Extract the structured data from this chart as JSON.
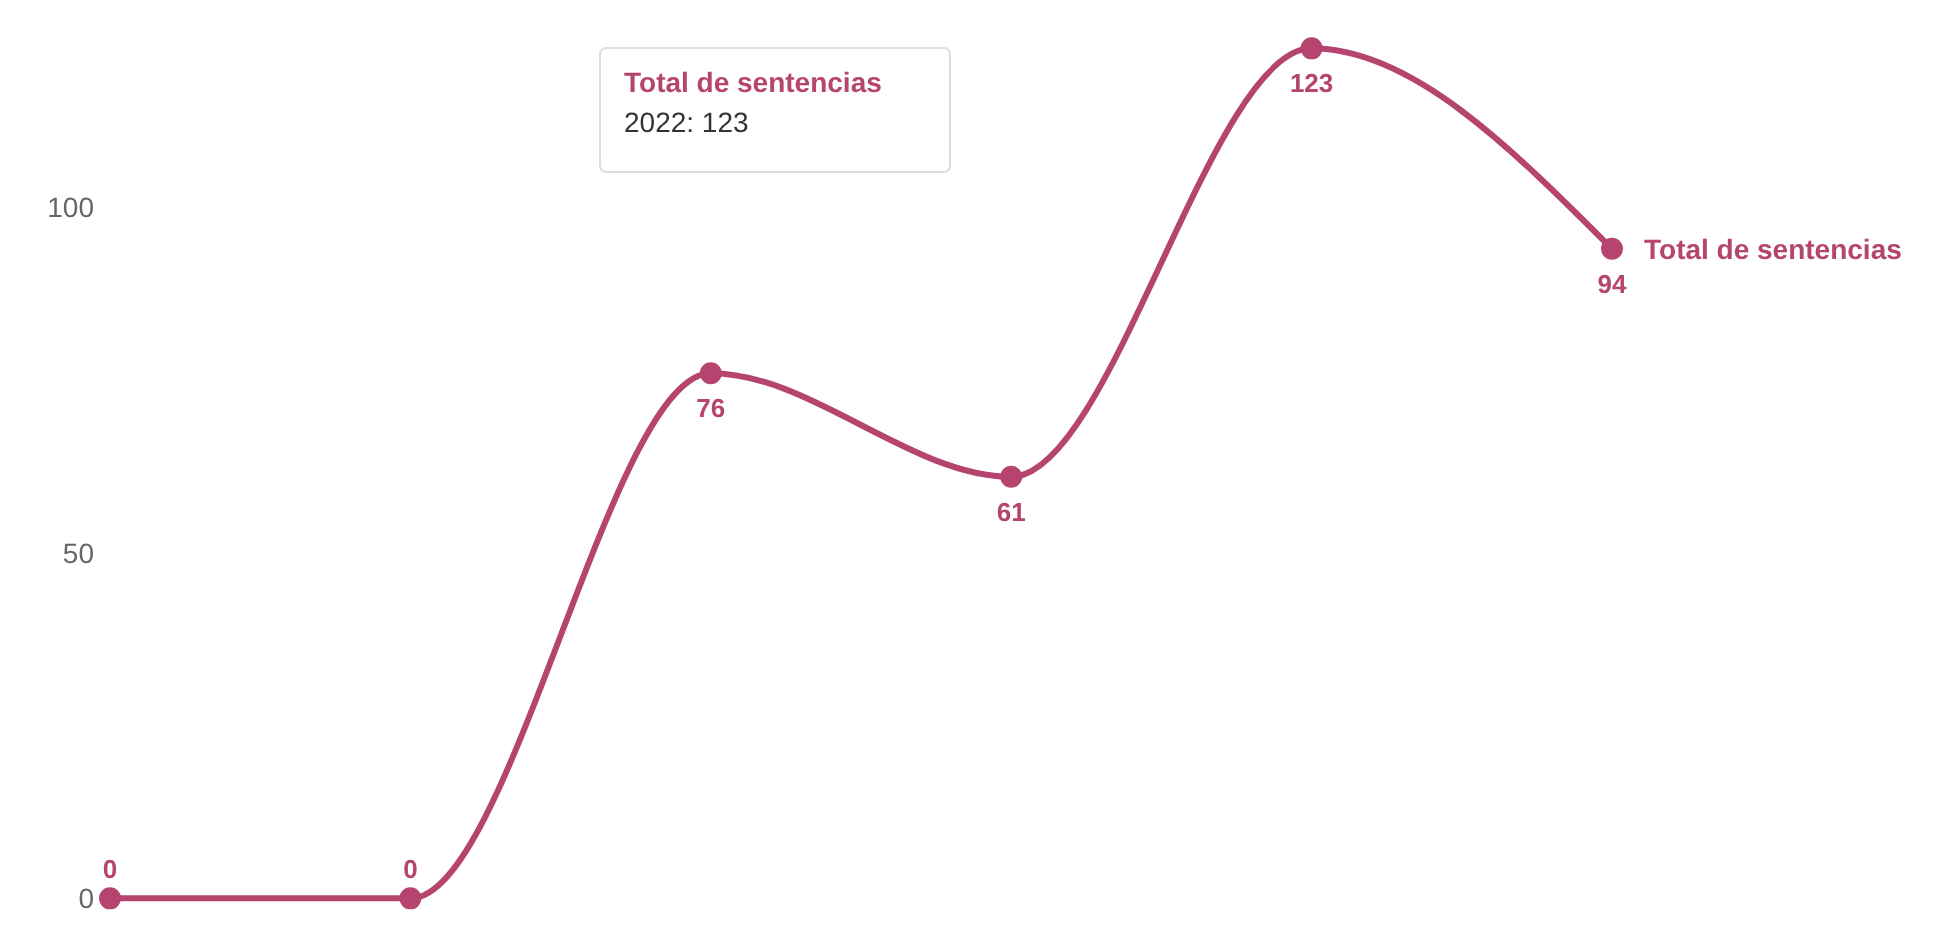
{
  "chart_data": {
    "type": "line",
    "categories": [
      null,
      null,
      null,
      null,
      null,
      null
    ],
    "series": [
      {
        "name": "Total de sentencias",
        "color": "#b5446e",
        "values": [
          0,
          0,
          76,
          61,
          123,
          94
        ]
      }
    ],
    "ylim": [
      -4,
      130
    ],
    "yticks": [
      0,
      50,
      100
    ],
    "tick_labels": "y",
    "grid": false,
    "legend": false,
    "marker": "circle",
    "line_style": "solid",
    "data_labels": true,
    "annotations": [
      "Total de sentencias",
      "2022: 123"
    ]
  }
}
